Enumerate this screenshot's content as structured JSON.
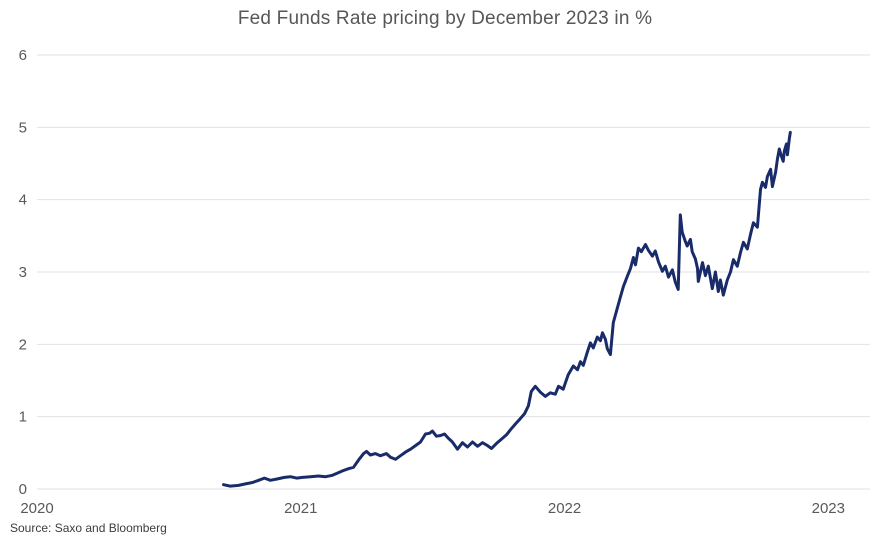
{
  "source": "Source: Saxo and Bloomberg",
  "colors": {
    "line": "#1a2b6a",
    "grid": "#e2e2e2",
    "tick_text": "#58595b",
    "title_text": "#555759",
    "source_text": "#3d3d3d",
    "background": "#ffffff"
  },
  "chart_data": {
    "type": "line",
    "title": "Fed Funds Rate pricing by December 2023 in %",
    "xlabel": "",
    "ylabel": "",
    "xlim": [
      2020,
      2023.158
    ],
    "ylim": [
      0,
      6
    ],
    "x_ticks": [
      2020,
      2021,
      2022,
      2023
    ],
    "x_tick_labels": [
      "2020",
      "2021",
      "2022",
      "2023"
    ],
    "y_ticks": [
      0,
      1,
      2,
      3,
      4,
      5,
      6
    ],
    "y_tick_labels": [
      "0",
      "1",
      "2",
      "3",
      "4",
      "5",
      "6"
    ],
    "grid": "horizontal",
    "legend": "none",
    "series": [
      {
        "name": "Fed Funds Rate pricing by December 2023",
        "color": "#1a2b6a",
        "points": [
          [
            2020.707,
            0.06
          ],
          [
            2020.733,
            0.04
          ],
          [
            2020.764,
            0.05
          ],
          [
            2020.79,
            0.07
          ],
          [
            2020.817,
            0.09
          ],
          [
            2020.84,
            0.12
          ],
          [
            2020.862,
            0.15
          ],
          [
            2020.885,
            0.12
          ],
          [
            2020.912,
            0.14
          ],
          [
            2020.938,
            0.16
          ],
          [
            2020.961,
            0.17
          ],
          [
            2020.984,
            0.15
          ],
          [
            2021.006,
            0.16
          ],
          [
            2021.037,
            0.17
          ],
          [
            2021.067,
            0.18
          ],
          [
            2021.094,
            0.17
          ],
          [
            2021.12,
            0.19
          ],
          [
            2021.139,
            0.22
          ],
          [
            2021.158,
            0.25
          ],
          [
            2021.181,
            0.28
          ],
          [
            2021.2,
            0.3
          ],
          [
            2021.219,
            0.4
          ],
          [
            2021.238,
            0.49
          ],
          [
            2021.249,
            0.52
          ],
          [
            2021.264,
            0.47
          ],
          [
            2021.283,
            0.49
          ],
          [
            2021.302,
            0.46
          ],
          [
            2021.325,
            0.49
          ],
          [
            2021.34,
            0.44
          ],
          [
            2021.359,
            0.41
          ],
          [
            2021.378,
            0.46
          ],
          [
            2021.397,
            0.51
          ],
          [
            2021.416,
            0.55
          ],
          [
            2021.435,
            0.6
          ],
          [
            2021.454,
            0.65
          ],
          [
            2021.473,
            0.76
          ],
          [
            2021.488,
            0.77
          ],
          [
            2021.499,
            0.8
          ],
          [
            2021.514,
            0.73
          ],
          [
            2021.53,
            0.74
          ],
          [
            2021.545,
            0.76
          ],
          [
            2021.56,
            0.7
          ],
          [
            2021.575,
            0.65
          ],
          [
            2021.594,
            0.55
          ],
          [
            2021.613,
            0.64
          ],
          [
            2021.632,
            0.58
          ],
          [
            2021.651,
            0.65
          ],
          [
            2021.67,
            0.59
          ],
          [
            2021.689,
            0.64
          ],
          [
            2021.708,
            0.6
          ],
          [
            2021.723,
            0.56
          ],
          [
            2021.742,
            0.63
          ],
          [
            2021.761,
            0.69
          ],
          [
            2021.78,
            0.75
          ],
          [
            2021.795,
            0.82
          ],
          [
            2021.814,
            0.9
          ],
          [
            2021.829,
            0.96
          ],
          [
            2021.848,
            1.04
          ],
          [
            2021.863,
            1.15
          ],
          [
            2021.874,
            1.35
          ],
          [
            2021.889,
            1.42
          ],
          [
            2021.908,
            1.34
          ],
          [
            2021.927,
            1.28
          ],
          [
            2021.946,
            1.33
          ],
          [
            2021.965,
            1.31
          ],
          [
            2021.977,
            1.42
          ],
          [
            2021.995,
            1.38
          ],
          [
            2022.014,
            1.58
          ],
          [
            2022.033,
            1.7
          ],
          [
            2022.049,
            1.65
          ],
          [
            2022.06,
            1.76
          ],
          [
            2022.071,
            1.71
          ],
          [
            2022.087,
            1.9
          ],
          [
            2022.098,
            2.02
          ],
          [
            2022.109,
            1.95
          ],
          [
            2022.124,
            2.1
          ],
          [
            2022.136,
            2.05
          ],
          [
            2022.144,
            2.16
          ],
          [
            2022.155,
            2.07
          ],
          [
            2022.162,
            1.94
          ],
          [
            2022.174,
            1.86
          ],
          [
            2022.185,
            2.3
          ],
          [
            2022.2,
            2.5
          ],
          [
            2022.212,
            2.66
          ],
          [
            2022.223,
            2.8
          ],
          [
            2022.238,
            2.94
          ],
          [
            2022.25,
            3.05
          ],
          [
            2022.261,
            3.2
          ],
          [
            2022.269,
            3.1
          ],
          [
            2022.28,
            3.33
          ],
          [
            2022.291,
            3.28
          ],
          [
            2022.307,
            3.38
          ],
          [
            2022.318,
            3.3
          ],
          [
            2022.333,
            3.22
          ],
          [
            2022.344,
            3.29
          ],
          [
            2022.356,
            3.14
          ],
          [
            2022.371,
            3.01
          ],
          [
            2022.382,
            3.08
          ],
          [
            2022.394,
            2.93
          ],
          [
            2022.409,
            3.03
          ],
          [
            2022.42,
            2.86
          ],
          [
            2022.431,
            2.76
          ],
          [
            2022.439,
            3.79
          ],
          [
            2022.446,
            3.55
          ],
          [
            2022.458,
            3.42
          ],
          [
            2022.465,
            3.36
          ],
          [
            2022.477,
            3.45
          ],
          [
            2022.484,
            3.28
          ],
          [
            2022.496,
            3.18
          ],
          [
            2022.504,
            3.05
          ],
          [
            2022.507,
            2.87
          ],
          [
            2022.523,
            3.13
          ],
          [
            2022.534,
            2.95
          ],
          [
            2022.545,
            3.08
          ],
          [
            2022.56,
            2.77
          ],
          [
            2022.572,
            3.0
          ],
          [
            2022.583,
            2.73
          ],
          [
            2022.591,
            2.89
          ],
          [
            2022.602,
            2.68
          ],
          [
            2022.617,
            2.89
          ],
          [
            2022.629,
            3.0
          ],
          [
            2022.64,
            3.17
          ],
          [
            2022.655,
            3.08
          ],
          [
            2022.667,
            3.27
          ],
          [
            2022.678,
            3.41
          ],
          [
            2022.693,
            3.32
          ],
          [
            2022.705,
            3.52
          ],
          [
            2022.716,
            3.68
          ],
          [
            2022.731,
            3.62
          ],
          [
            2022.743,
            4.14
          ],
          [
            2022.75,
            4.24
          ],
          [
            2022.762,
            4.17
          ],
          [
            2022.769,
            4.32
          ],
          [
            2022.781,
            4.42
          ],
          [
            2022.788,
            4.18
          ],
          [
            2022.8,
            4.38
          ],
          [
            2022.807,
            4.56
          ],
          [
            2022.814,
            4.7
          ],
          [
            2022.822,
            4.6
          ],
          [
            2022.829,
            4.53
          ],
          [
            2022.833,
            4.67
          ],
          [
            2022.841,
            4.77
          ],
          [
            2022.845,
            4.62
          ],
          [
            2022.852,
            4.84
          ],
          [
            2022.856,
            4.93
          ]
        ]
      }
    ]
  }
}
